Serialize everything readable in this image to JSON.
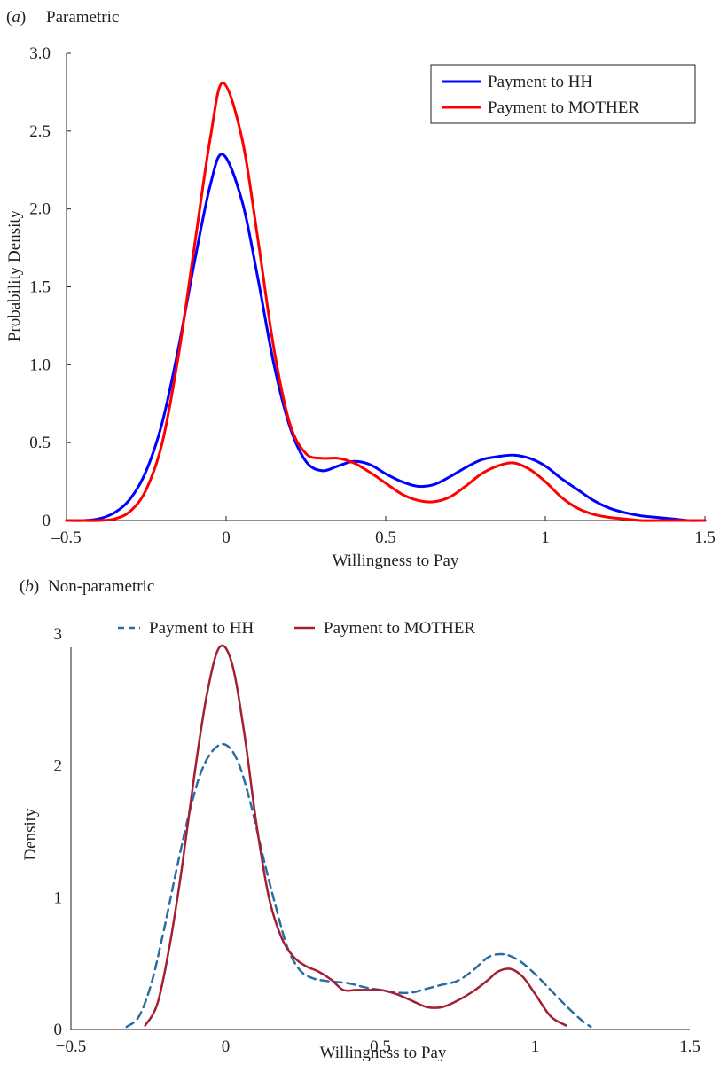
{
  "chart_data": [
    {
      "type": "line",
      "panel_letter": "a",
      "title": "Parametric",
      "xlabel": "Willingness to Pay",
      "ylabel": "Probability Density",
      "xlim": [
        -0.5,
        1.5
      ],
      "ylim": [
        0,
        3.0
      ],
      "xticks": [
        -0.5,
        0,
        0.5,
        1,
        1.5
      ],
      "xtick_labels": [
        "–0.5",
        "0",
        "0.5",
        "1",
        "1.5"
      ],
      "yticks": [
        0,
        0.5,
        1.0,
        1.5,
        2.0,
        2.5,
        3.0
      ],
      "ytick_labels": [
        "0",
        "0.5",
        "1.0",
        "1.5",
        "2.0",
        "2.5",
        "3.0"
      ],
      "legend_position": "top-right",
      "grid": false,
      "series": [
        {
          "name": "Payment to HH",
          "color": "#0000ff",
          "style": "solid",
          "x": [
            -0.5,
            -0.45,
            -0.4,
            -0.35,
            -0.3,
            -0.25,
            -0.2,
            -0.15,
            -0.1,
            -0.05,
            -0.01,
            0.05,
            0.1,
            0.15,
            0.2,
            0.25,
            0.3,
            0.35,
            0.4,
            0.45,
            0.5,
            0.55,
            0.6,
            0.65,
            0.7,
            0.75,
            0.8,
            0.85,
            0.9,
            0.95,
            1.0,
            1.05,
            1.1,
            1.15,
            1.2,
            1.25,
            1.3,
            1.35,
            1.4,
            1.45,
            1.5
          ],
          "y": [
            0.0,
            0.0,
            0.01,
            0.05,
            0.14,
            0.32,
            0.63,
            1.1,
            1.65,
            2.15,
            2.35,
            2.05,
            1.55,
            1.0,
            0.6,
            0.38,
            0.32,
            0.35,
            0.38,
            0.36,
            0.3,
            0.25,
            0.22,
            0.23,
            0.28,
            0.34,
            0.39,
            0.41,
            0.42,
            0.4,
            0.35,
            0.27,
            0.2,
            0.13,
            0.08,
            0.05,
            0.03,
            0.02,
            0.01,
            0.0,
            0.0
          ]
        },
        {
          "name": "Payment to MOTHER",
          "color": "#ff0000",
          "style": "solid",
          "x": [
            -0.5,
            -0.45,
            -0.4,
            -0.35,
            -0.3,
            -0.25,
            -0.2,
            -0.15,
            -0.1,
            -0.05,
            -0.01,
            0.05,
            0.1,
            0.15,
            0.2,
            0.25,
            0.3,
            0.35,
            0.4,
            0.45,
            0.5,
            0.55,
            0.6,
            0.65,
            0.7,
            0.75,
            0.8,
            0.85,
            0.9,
            0.95,
            1.0,
            1.05,
            1.1,
            1.15,
            1.2,
            1.25,
            1.3,
            1.35,
            1.4,
            1.45,
            1.5
          ],
          "y": [
            0.0,
            0.0,
            0.0,
            0.01,
            0.06,
            0.2,
            0.5,
            1.05,
            1.75,
            2.45,
            2.81,
            2.45,
            1.8,
            1.1,
            0.62,
            0.43,
            0.4,
            0.4,
            0.37,
            0.31,
            0.24,
            0.17,
            0.13,
            0.12,
            0.15,
            0.22,
            0.3,
            0.35,
            0.37,
            0.33,
            0.25,
            0.15,
            0.08,
            0.04,
            0.02,
            0.01,
            0.0,
            0.0,
            0.0,
            0.0,
            0.0
          ]
        }
      ]
    },
    {
      "type": "line",
      "panel_letter": "b",
      "title": "Non-parametric",
      "xlabel": "Willingness to Pay",
      "ylabel": "Density",
      "xlim": [
        -0.5,
        1.5
      ],
      "ylim": [
        0,
        3
      ],
      "xticks": [
        -0.5,
        0,
        0.5,
        1,
        1.5
      ],
      "xtick_labels": [
        "−0.5",
        "0",
        "0.5",
        "1",
        "1.5"
      ],
      "yticks": [
        0,
        1,
        2,
        3
      ],
      "ytick_labels": [
        "0",
        "1",
        "2",
        "3"
      ],
      "legend_position": "top",
      "grid": false,
      "series": [
        {
          "name": "Payment to HH",
          "color": "#2b6ca3",
          "style": "dashed",
          "x": [
            -0.32,
            -0.28,
            -0.24,
            -0.2,
            -0.16,
            -0.12,
            -0.08,
            -0.04,
            0.0,
            0.04,
            0.08,
            0.12,
            0.16,
            0.2,
            0.24,
            0.28,
            0.32,
            0.36,
            0.4,
            0.45,
            0.5,
            0.55,
            0.6,
            0.65,
            0.7,
            0.75,
            0.8,
            0.85,
            0.9,
            0.95,
            1.0,
            1.05,
            1.1,
            1.15,
            1.18
          ],
          "y": [
            0.02,
            0.1,
            0.35,
            0.75,
            1.2,
            1.62,
            1.95,
            2.12,
            2.16,
            2.03,
            1.72,
            1.32,
            0.95,
            0.62,
            0.45,
            0.39,
            0.37,
            0.36,
            0.35,
            0.32,
            0.3,
            0.28,
            0.28,
            0.31,
            0.34,
            0.37,
            0.45,
            0.55,
            0.57,
            0.52,
            0.42,
            0.3,
            0.18,
            0.07,
            0.02
          ]
        },
        {
          "name": "Payment to MOTHER",
          "color": "#a31f34",
          "style": "solid",
          "x": [
            -0.26,
            -0.22,
            -0.18,
            -0.14,
            -0.1,
            -0.06,
            -0.02,
            0.02,
            0.06,
            0.1,
            0.14,
            0.18,
            0.22,
            0.26,
            0.3,
            0.34,
            0.38,
            0.42,
            0.46,
            0.5,
            0.55,
            0.6,
            0.65,
            0.7,
            0.75,
            0.8,
            0.85,
            0.88,
            0.92,
            0.96,
            1.0,
            1.05,
            1.1
          ],
          "y": [
            0.03,
            0.2,
            0.65,
            1.25,
            1.95,
            2.55,
            2.9,
            2.78,
            2.25,
            1.55,
            1.0,
            0.7,
            0.55,
            0.48,
            0.44,
            0.38,
            0.3,
            0.3,
            0.3,
            0.3,
            0.27,
            0.22,
            0.17,
            0.17,
            0.22,
            0.29,
            0.38,
            0.44,
            0.46,
            0.4,
            0.27,
            0.1,
            0.03
          ]
        }
      ]
    }
  ]
}
